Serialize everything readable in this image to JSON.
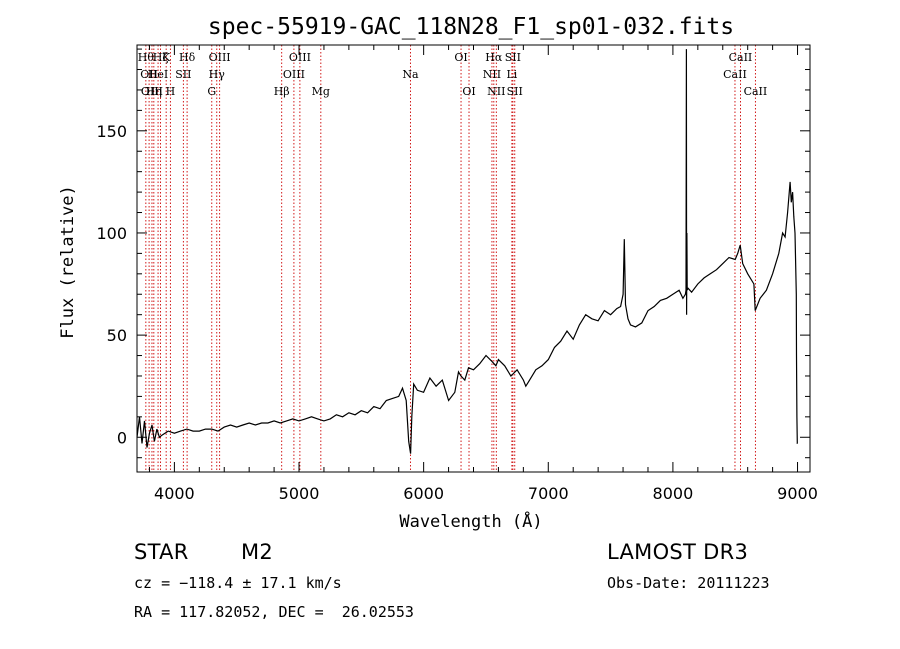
{
  "chart_data": {
    "type": "line",
    "title": "spec-55919-GAC_118N28_F1_sp01-032.fits",
    "xlabel": "Wavelength (Å)",
    "ylabel": "Flux (relative)",
    "xlim": [
      3700,
      9100
    ],
    "ylim": [
      -17,
      192
    ],
    "xticks": [
      4000,
      5000,
      6000,
      7000,
      8000,
      9000
    ],
    "yticks": [
      0,
      50,
      100,
      150
    ],
    "series": [
      {
        "name": "spectrum",
        "x": [
          3700,
          3720,
          3740,
          3760,
          3780,
          3800,
          3820,
          3840,
          3860,
          3880,
          3900,
          3950,
          4000,
          4050,
          4100,
          4150,
          4200,
          4250,
          4300,
          4350,
          4400,
          4450,
          4500,
          4550,
          4600,
          4650,
          4700,
          4750,
          4800,
          4850,
          4900,
          4950,
          5000,
          5050,
          5100,
          5150,
          5200,
          5250,
          5300,
          5350,
          5400,
          5450,
          5500,
          5550,
          5600,
          5650,
          5700,
          5750,
          5800,
          5830,
          5860,
          5880,
          5895,
          5905,
          5920,
          5950,
          6000,
          6050,
          6100,
          6150,
          6200,
          6250,
          6280,
          6300,
          6330,
          6360,
          6400,
          6450,
          6500,
          6550,
          6580,
          6600,
          6650,
          6700,
          6750,
          6800,
          6820,
          6850,
          6900,
          6950,
          7000,
          7050,
          7100,
          7150,
          7200,
          7250,
          7300,
          7350,
          7400,
          7450,
          7500,
          7550,
          7580,
          7600,
          7610,
          7620,
          7640,
          7660,
          7700,
          7750,
          7800,
          7850,
          7900,
          7950,
          8000,
          8050,
          8080,
          8100,
          8105,
          8108,
          8110,
          8112,
          8115,
          8120,
          8150,
          8200,
          8250,
          8300,
          8350,
          8400,
          8450,
          8500,
          8520,
          8540,
          8560,
          8600,
          8650,
          8660,
          8700,
          8750,
          8800,
          8850,
          8880,
          8900,
          8920,
          8940,
          8950,
          8960,
          8970,
          8980,
          8990,
          8992,
          8995,
          8998,
          9000
        ],
        "values": [
          0,
          10,
          -3,
          8,
          -5,
          2,
          6,
          -2,
          4,
          0,
          1,
          3,
          2,
          3,
          4,
          3,
          3,
          4,
          4,
          3,
          5,
          6,
          5,
          6,
          7,
          6,
          7,
          7,
          8,
          7,
          8,
          9,
          8,
          9,
          10,
          9,
          8,
          9,
          11,
          10,
          12,
          11,
          13,
          12,
          15,
          14,
          18,
          19,
          20,
          24,
          18,
          -2,
          -8,
          10,
          26,
          23,
          22,
          29,
          25,
          28,
          18,
          22,
          32,
          30,
          28,
          34,
          33,
          36,
          40,
          37,
          35,
          38,
          35,
          30,
          33,
          28,
          25,
          28,
          33,
          35,
          38,
          44,
          47,
          52,
          48,
          55,
          60,
          58,
          57,
          62,
          60,
          63,
          64,
          70,
          97,
          65,
          58,
          55,
          54,
          56,
          62,
          64,
          67,
          68,
          70,
          72,
          68,
          70,
          72,
          190,
          60,
          100,
          72,
          73,
          71,
          75,
          78,
          80,
          82,
          85,
          88,
          87,
          90,
          94,
          85,
          80,
          75,
          62,
          68,
          72,
          80,
          90,
          100,
          98,
          110,
          125,
          115,
          120,
          108,
          100,
          70,
          40,
          10,
          -3,
          -3
        ],
        "color": "#000000"
      }
    ],
    "lines": [
      {
        "wl": 3771,
        "name": "Hθ",
        "row": 1
      },
      {
        "wl": 3797,
        "name": "OII",
        "row": 2
      },
      {
        "wl": 3820,
        "name": "OIII",
        "row": 3
      },
      {
        "wl": 3835,
        "name": "Hη",
        "row": 3
      },
      {
        "wl": 3869,
        "name": "HeI",
        "row": 2
      },
      {
        "wl": 3889,
        "name": "Hζ",
        "row": 1
      },
      {
        "wl": 3934,
        "name": "K",
        "row": 1
      },
      {
        "wl": 3968,
        "name": "H",
        "row": 3
      },
      {
        "wl": 4072,
        "name": "SII",
        "row": 2
      },
      {
        "wl": 4102,
        "name": "Hδ",
        "row": 1
      },
      {
        "wl": 4300,
        "name": "G",
        "row": 3
      },
      {
        "wl": 4340,
        "name": "Hγ",
        "row": 2
      },
      {
        "wl": 4363,
        "name": "OIII",
        "row": 1
      },
      {
        "wl": 4861,
        "name": "Hβ",
        "row": 3
      },
      {
        "wl": 4959,
        "name": "OIII",
        "row": 2
      },
      {
        "wl": 5007,
        "name": "OIII",
        "row": 1
      },
      {
        "wl": 5175,
        "name": "Mg",
        "row": 3
      },
      {
        "wl": 5894,
        "name": "Na",
        "row": 2
      },
      {
        "wl": 6300,
        "name": "OI",
        "row": 1
      },
      {
        "wl": 6364,
        "name": "OI",
        "row": 3
      },
      {
        "wl": 6548,
        "name": "NII",
        "row": 2
      },
      {
        "wl": 6563,
        "name": "Hα",
        "row": 1
      },
      {
        "wl": 6583,
        "name": "NII",
        "row": 3
      },
      {
        "wl": 6708,
        "name": "Li",
        "row": 2
      },
      {
        "wl": 6716,
        "name": "SII",
        "row": 1
      },
      {
        "wl": 6731,
        "name": "SII",
        "row": 3
      },
      {
        "wl": 8498,
        "name": "CaII",
        "row": 2
      },
      {
        "wl": 8542,
        "name": "CaII",
        "row": 1
      },
      {
        "wl": 8662,
        "name": "CaII",
        "row": 3
      }
    ],
    "line_color": "#cc0000"
  },
  "info": {
    "obj_class": "STAR",
    "subclass": "M2",
    "survey": "LAMOST DR3",
    "cz": "cz = −118.4 ± 17.1 km/s",
    "obs_date": "Obs-Date: 20111223",
    "coords": "RA = 117.82052, DEC =  26.02553"
  }
}
